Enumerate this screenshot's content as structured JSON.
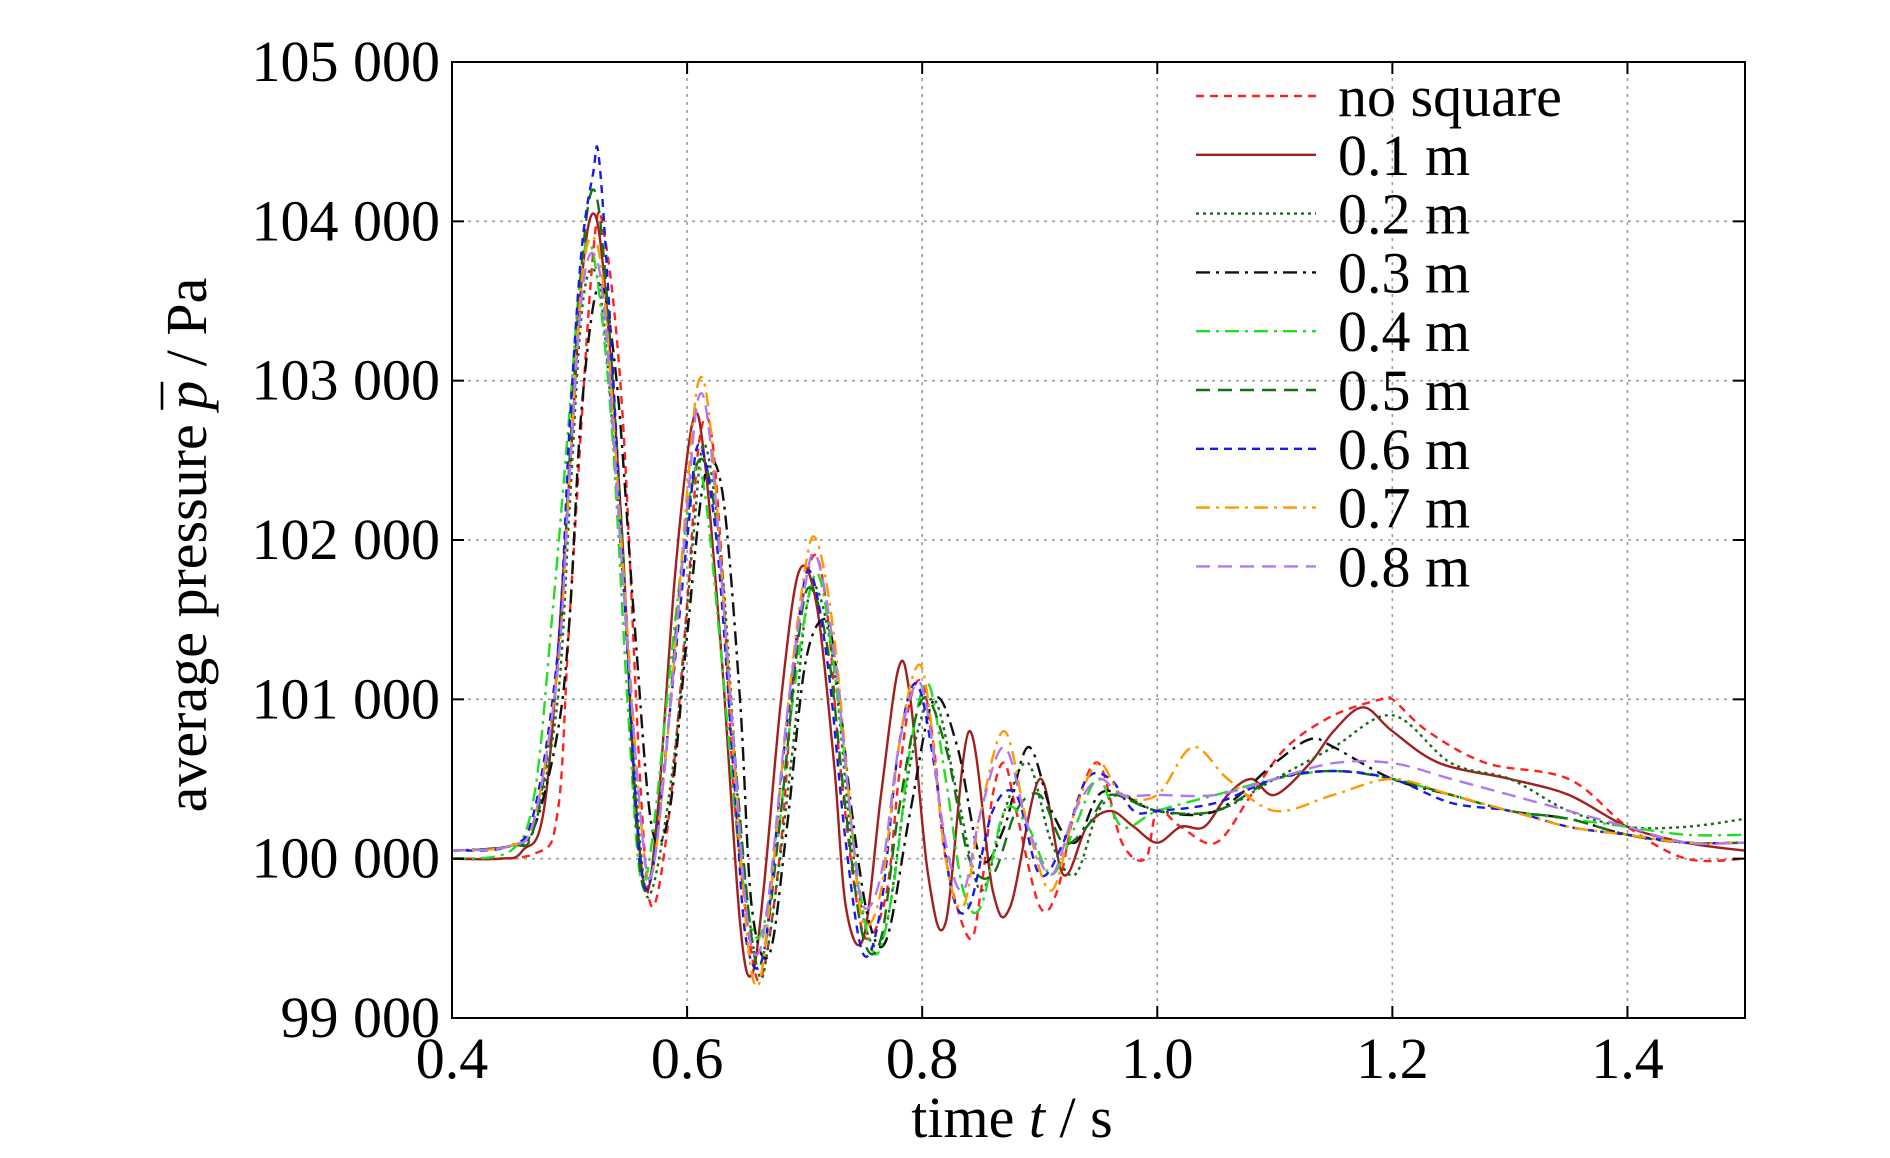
{
  "chart_data": {
    "type": "line",
    "title": "",
    "xlabel": {
      "prefix": "time ",
      "symbol": "t",
      "suffix": " / s"
    },
    "ylabel": {
      "prefix": "average pressure ",
      "symbol": "p",
      "suffix": " / Pa"
    },
    "xlim": [
      0.4,
      1.5
    ],
    "ylim": [
      99000,
      105000
    ],
    "xticks": [
      0.4,
      0.6,
      0.8,
      1.0,
      1.2,
      1.4
    ],
    "xtick_labels": [
      "0.4",
      "0.6",
      "0.8",
      "1.0",
      "1.2",
      "1.4"
    ],
    "yticks": [
      99000,
      100000,
      101000,
      102000,
      103000,
      104000,
      105000
    ],
    "ytick_labels": [
      "99 000",
      "100 000",
      "101 000",
      "102 000",
      "103 000",
      "104 000",
      "105 000"
    ],
    "grid": true,
    "legend_position": "top-right",
    "series": [
      {
        "name": "no square",
        "color": "#ff2020",
        "dash": "short-dash",
        "x": [
          0.4,
          0.47,
          0.49,
          0.5,
          0.52,
          0.53,
          0.545,
          0.56,
          0.57,
          0.585,
          0.6,
          0.61,
          0.62,
          0.63,
          0.64,
          0.655,
          0.665,
          0.68,
          0.69,
          0.7,
          0.71,
          0.72,
          0.73,
          0.745,
          0.755,
          0.77,
          0.78,
          0.79,
          0.8,
          0.81,
          0.82,
          0.84,
          0.85,
          0.86,
          0.87,
          0.88,
          0.9,
          0.915,
          0.93,
          0.95,
          0.97,
          0.99,
          1.0,
          1.02,
          1.05,
          1.08,
          1.11,
          1.15,
          1.19,
          1.2,
          1.23,
          1.28,
          1.35,
          1.4,
          1.45,
          1.5
        ],
        "y": [
          100000,
          100030,
          100300,
          101500,
          103800,
          103900,
          102800,
          100500,
          99700,
          100300,
          101600,
          102600,
          102700,
          101800,
          100400,
          99400,
          99300,
          100100,
          101100,
          101700,
          101900,
          101500,
          100600,
          99700,
          99500,
          99800,
          100500,
          101000,
          101100,
          100700,
          100000,
          99500,
          99800,
          100400,
          100600,
          100300,
          99700,
          99800,
          100300,
          100600,
          100100,
          100000,
          100300,
          100200,
          100100,
          100400,
          100700,
          100900,
          101000,
          101000,
          100800,
          100600,
          100500,
          100200,
          100000,
          100000
        ]
      },
      {
        "name": "0.1 m",
        "color": "#a02020",
        "dash": "solid",
        "x": [
          0.4,
          0.44,
          0.46,
          0.48,
          0.5,
          0.51,
          0.52,
          0.53,
          0.545,
          0.555,
          0.565,
          0.575,
          0.59,
          0.605,
          0.615,
          0.63,
          0.645,
          0.655,
          0.665,
          0.68,
          0.695,
          0.71,
          0.725,
          0.735,
          0.75,
          0.765,
          0.78,
          0.79,
          0.805,
          0.82,
          0.84,
          0.86,
          0.875,
          0.9,
          0.92,
          0.94,
          0.96,
          0.98,
          1.0,
          1.02,
          1.04,
          1.06,
          1.08,
          1.1,
          1.13,
          1.15,
          1.175,
          1.2,
          1.24,
          1.3,
          1.35,
          1.4,
          1.45,
          1.5
        ],
        "y": [
          100000,
          100000,
          100050,
          100400,
          102400,
          103600,
          104050,
          103600,
          102000,
          100500,
          99800,
          100300,
          101800,
          102750,
          102500,
          101200,
          99600,
          99270,
          99800,
          101000,
          101800,
          101600,
          100600,
          99700,
          99500,
          100400,
          101200,
          101000,
          99900,
          99600,
          100800,
          99800,
          99700,
          100500,
          99900,
          100200,
          100300,
          100200,
          100100,
          100200,
          100200,
          100400,
          100500,
          100400,
          100600,
          100800,
          100950,
          100800,
          100600,
          100500,
          100400,
          100200,
          100100,
          100050
        ]
      },
      {
        "name": "0.2 m",
        "color": "#1c6a1c",
        "dash": "dotted",
        "x": [
          0.4,
          0.45,
          0.47,
          0.49,
          0.5,
          0.51,
          0.52,
          0.53,
          0.545,
          0.56,
          0.57,
          0.59,
          0.605,
          0.615,
          0.63,
          0.645,
          0.66,
          0.67,
          0.69,
          0.7,
          0.71,
          0.725,
          0.74,
          0.755,
          0.77,
          0.79,
          0.81,
          0.83,
          0.85,
          0.87,
          0.89,
          0.91,
          0.93,
          0.95,
          0.97,
          1.0,
          1.05,
          1.1,
          1.15,
          1.2,
          1.25,
          1.3,
          1.35,
          1.4,
          1.45,
          1.5
        ],
        "y": [
          100050,
          100080,
          100200,
          101000,
          102200,
          103400,
          103700,
          103300,
          101800,
          100100,
          99800,
          100700,
          102000,
          102600,
          101800,
          100200,
          99300,
          99500,
          100700,
          101500,
          101700,
          101200,
          100100,
          99500,
          99600,
          100600,
          101000,
          100400,
          99800,
          100300,
          100600,
          100100,
          99900,
          100300,
          100400,
          100300,
          100300,
          100500,
          100700,
          100900,
          100600,
          100500,
          100300,
          100200,
          100200,
          100250
        ]
      },
      {
        "name": "0.3 m",
        "color": "#101010",
        "dash": "dash-dot",
        "x": [
          0.4,
          0.45,
          0.47,
          0.49,
          0.5,
          0.51,
          0.525,
          0.54,
          0.555,
          0.57,
          0.585,
          0.6,
          0.615,
          0.63,
          0.645,
          0.655,
          0.67,
          0.685,
          0.7,
          0.715,
          0.725,
          0.74,
          0.755,
          0.77,
          0.79,
          0.81,
          0.83,
          0.85,
          0.87,
          0.89,
          0.91,
          0.93,
          0.95,
          0.97,
          1.0,
          1.05,
          1.1,
          1.13,
          1.15,
          1.2,
          1.25,
          1.3,
          1.35,
          1.4,
          1.45,
          1.5
        ],
        "y": [
          100050,
          100080,
          100200,
          100800,
          101500,
          102800,
          103600,
          103000,
          101500,
          100200,
          100300,
          101400,
          102400,
          102300,
          101000,
          99700,
          99400,
          100200,
          101200,
          101500,
          101300,
          100300,
          99600,
          99500,
          100300,
          101000,
          100700,
          100000,
          100200,
          100700,
          100300,
          100100,
          100400,
          100400,
          100300,
          100300,
          100600,
          100750,
          100700,
          100500,
          100400,
          100300,
          100250,
          100150,
          100100,
          100100
        ]
      },
      {
        "name": "0.4 m",
        "color": "#22dd22",
        "dash": "dash-dot",
        "x": [
          0.4,
          0.45,
          0.47,
          0.485,
          0.5,
          0.51,
          0.52,
          0.535,
          0.55,
          0.56,
          0.57,
          0.59,
          0.605,
          0.615,
          0.63,
          0.645,
          0.66,
          0.675,
          0.69,
          0.705,
          0.715,
          0.73,
          0.745,
          0.76,
          0.775,
          0.79,
          0.805,
          0.82,
          0.835,
          0.85,
          0.87,
          0.89,
          0.91,
          0.93,
          0.95,
          0.97,
          1.0,
          1.05,
          1.1,
          1.15,
          1.2,
          1.25,
          1.3,
          1.35,
          1.4,
          1.45,
          1.5
        ],
        "y": [
          100000,
          100050,
          100400,
          101500,
          102800,
          103700,
          103800,
          102800,
          100900,
          99900,
          100100,
          101500,
          102400,
          102300,
          101200,
          100000,
          99500,
          100000,
          101000,
          101700,
          101700,
          100900,
          99900,
          99400,
          99800,
          100700,
          101100,
          100500,
          99800,
          99700,
          100300,
          100200,
          99900,
          100200,
          100500,
          100200,
          100300,
          100400,
          100500,
          100550,
          100500,
          100400,
          100300,
          100250,
          100200,
          100150,
          100150
        ]
      },
      {
        "name": "0.5 m",
        "color": "#137313",
        "dash": "dashed",
        "x": [
          0.4,
          0.45,
          0.47,
          0.49,
          0.5,
          0.51,
          0.52,
          0.53,
          0.545,
          0.555,
          0.565,
          0.58,
          0.595,
          0.61,
          0.625,
          0.64,
          0.655,
          0.665,
          0.68,
          0.695,
          0.705,
          0.72,
          0.735,
          0.75,
          0.765,
          0.78,
          0.8,
          0.82,
          0.84,
          0.86,
          0.88,
          0.9,
          0.92,
          0.94,
          0.96,
          1.0,
          1.05,
          1.1,
          1.15,
          1.2,
          1.25,
          1.3,
          1.35,
          1.4,
          1.45,
          1.5
        ],
        "y": [
          100050,
          100080,
          100200,
          101200,
          102500,
          103700,
          104200,
          103700,
          102000,
          100400,
          99800,
          100500,
          101800,
          102500,
          102100,
          100700,
          99500,
          99400,
          100300,
          101400,
          101700,
          101300,
          100300,
          99500,
          99500,
          100300,
          101000,
          100700,
          100000,
          99900,
          100300,
          100400,
          100100,
          100200,
          100400,
          100300,
          100300,
          100500,
          100550,
          100500,
          100400,
          100300,
          100250,
          100150,
          100100,
          100100
        ]
      },
      {
        "name": "0.6 m",
        "color": "#1a1ae6",
        "dash": "short-dash",
        "x": [
          0.4,
          0.45,
          0.47,
          0.49,
          0.5,
          0.51,
          0.52,
          0.525,
          0.535,
          0.55,
          0.56,
          0.57,
          0.585,
          0.6,
          0.61,
          0.625,
          0.64,
          0.65,
          0.665,
          0.68,
          0.695,
          0.705,
          0.72,
          0.735,
          0.75,
          0.765,
          0.78,
          0.795,
          0.81,
          0.825,
          0.84,
          0.86,
          0.88,
          0.9,
          0.92,
          0.94,
          0.96,
          0.98,
          1.0,
          1.05,
          1.1,
          1.15,
          1.2,
          1.25,
          1.3,
          1.35,
          1.4,
          1.45,
          1.5
        ],
        "y": [
          100050,
          100080,
          100300,
          101300,
          102700,
          103800,
          104300,
          104400,
          103300,
          101200,
          100000,
          99900,
          100900,
          102000,
          102600,
          102000,
          100500,
          99500,
          99400,
          100500,
          101500,
          101800,
          101200,
          100100,
          99400,
          99700,
          100700,
          101100,
          100600,
          99800,
          99700,
          100300,
          100400,
          99900,
          100100,
          100500,
          100500,
          100300,
          100300,
          100350,
          100500,
          100550,
          100500,
          100350,
          100300,
          100200,
          100150,
          100100,
          100100
        ]
      },
      {
        "name": "0.7 m",
        "color": "#ff9900",
        "dash": "dash-dot",
        "x": [
          0.4,
          0.45,
          0.47,
          0.49,
          0.5,
          0.51,
          0.52,
          0.53,
          0.545,
          0.56,
          0.57,
          0.585,
          0.6,
          0.61,
          0.62,
          0.635,
          0.65,
          0.66,
          0.67,
          0.685,
          0.7,
          0.71,
          0.725,
          0.74,
          0.75,
          0.765,
          0.78,
          0.795,
          0.805,
          0.82,
          0.835,
          0.85,
          0.87,
          0.89,
          0.91,
          0.93,
          0.95,
          0.97,
          1.0,
          1.03,
          1.06,
          1.1,
          1.15,
          1.2,
          1.25,
          1.3,
          1.35,
          1.4,
          1.45,
          1.5
        ],
        "y": [
          100050,
          100080,
          100250,
          101200,
          102400,
          103600,
          103900,
          103500,
          101900,
          100300,
          99900,
          100900,
          102300,
          103000,
          102700,
          101200,
          99600,
          99200,
          99700,
          100900,
          101800,
          102000,
          101400,
          100200,
          99600,
          99800,
          100700,
          101200,
          101000,
          100000,
          99700,
          100300,
          100800,
          100200,
          99800,
          100300,
          100600,
          100400,
          100400,
          100700,
          100500,
          100300,
          100400,
          100500,
          100400,
          100300,
          100200,
          100150,
          100100,
          100100
        ]
      },
      {
        "name": "0.8 m",
        "color": "#b07aef",
        "dash": "dashed",
        "x": [
          0.4,
          0.45,
          0.47,
          0.49,
          0.5,
          0.51,
          0.52,
          0.53,
          0.545,
          0.56,
          0.57,
          0.585,
          0.6,
          0.61,
          0.62,
          0.635,
          0.65,
          0.66,
          0.67,
          0.685,
          0.7,
          0.71,
          0.725,
          0.74,
          0.75,
          0.765,
          0.78,
          0.795,
          0.805,
          0.82,
          0.835,
          0.85,
          0.87,
          0.89,
          0.91,
          0.93,
          0.95,
          0.97,
          1.0,
          1.05,
          1.1,
          1.15,
          1.2,
          1.25,
          1.3,
          1.35,
          1.4,
          1.45,
          1.5
        ],
        "y": [
          100050,
          100080,
          100250,
          101200,
          102400,
          103500,
          103800,
          103400,
          101800,
          100300,
          99900,
          100900,
          102200,
          102900,
          102600,
          101200,
          99700,
          99400,
          99800,
          100900,
          101700,
          101900,
          101300,
          100200,
          99700,
          99900,
          100700,
          101100,
          100900,
          100100,
          99800,
          100300,
          100700,
          100200,
          99900,
          100300,
          100500,
          100400,
          100400,
          100400,
          100500,
          100600,
          100600,
          100500,
          100400,
          100300,
          100200,
          100100,
          100100
        ]
      }
    ]
  }
}
